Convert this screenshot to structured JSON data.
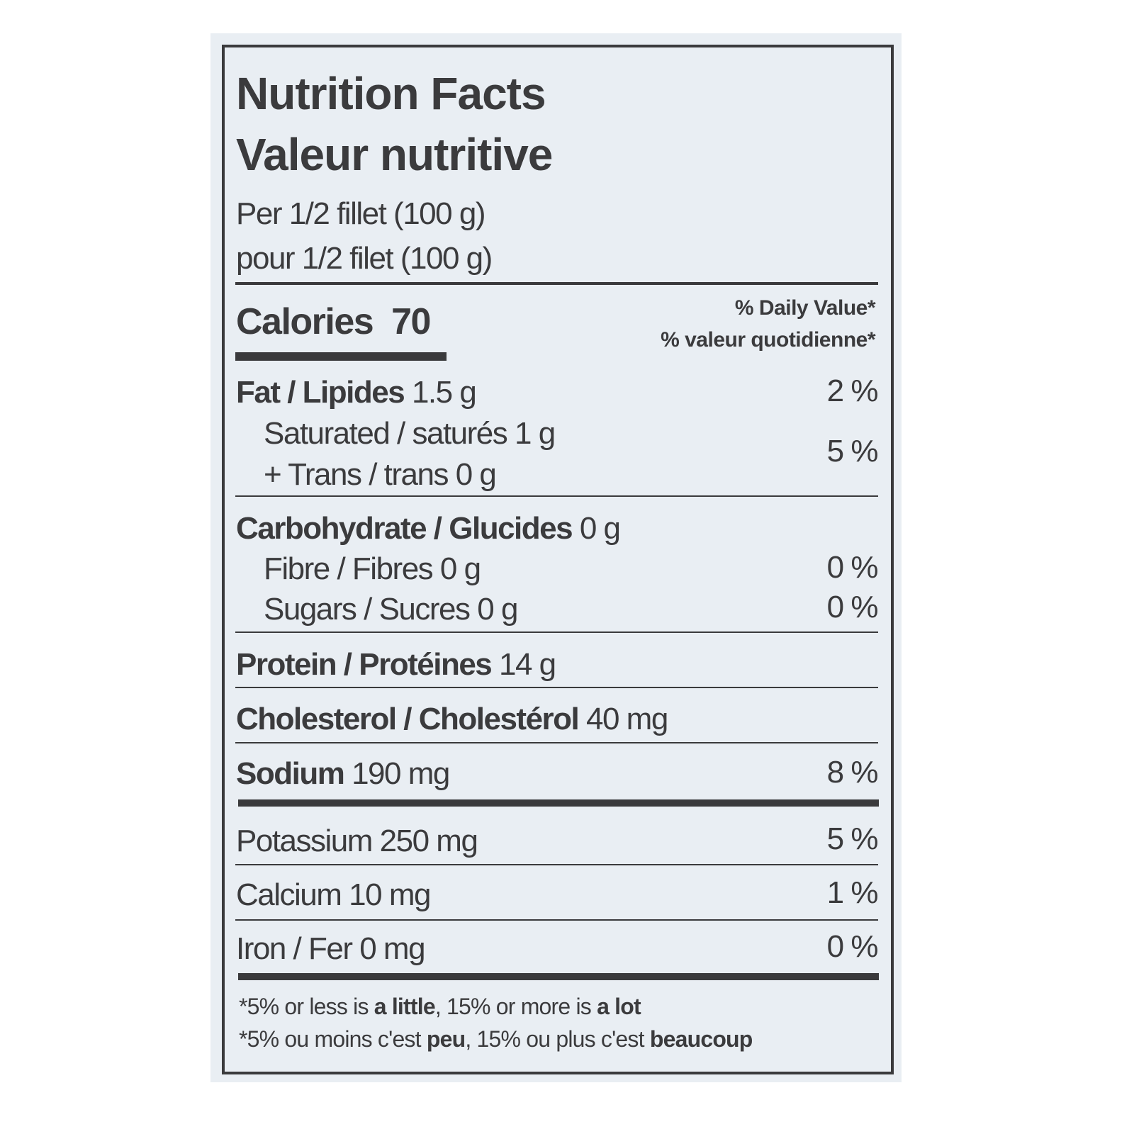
{
  "label": {
    "title_en": "Nutrition Facts",
    "title_fr": "Valeur nutritive",
    "serving_en": "Per 1/2 fillet (100 g)",
    "serving_fr": "pour 1/2 filet (100 g)",
    "calories_label": "Calories",
    "calories_value": "70",
    "dv_header_en": "% Daily Value*",
    "dv_header_fr": "% valeur quotidienne*",
    "nutrients": [
      {
        "name": "Fat / Lipides",
        "amount": "1.5 g",
        "dv": "2 %"
      },
      {
        "name": "Saturated / saturés",
        "amount": "1 g",
        "dv": "5 %"
      },
      {
        "name": "+ Trans / trans",
        "amount": "0 g"
      },
      {
        "name": "Carbohydrate / Glucides",
        "amount": "0 g"
      },
      {
        "name": "Fibre / Fibres",
        "amount": "0 g",
        "dv": "0 %"
      },
      {
        "name": "Sugars / Sucres",
        "amount": "0 g",
        "dv": "0 %"
      },
      {
        "name": "Protein / Protéines",
        "amount": "14 g"
      },
      {
        "name": "Cholesterol / Cholestérol",
        "amount": "40 mg"
      },
      {
        "name": "Sodium",
        "amount": "190 mg",
        "dv": "8 %"
      },
      {
        "name": "Potassium",
        "amount": "250 mg",
        "dv": "5 %"
      },
      {
        "name": "Calcium",
        "amount": "10 mg",
        "dv": "1 %"
      },
      {
        "name": "Iron / Fer",
        "amount": "0 mg",
        "dv": "0 %"
      }
    ],
    "footnote_en": {
      "prefix": "*5% or less is ",
      "bold1": "a little",
      "mid": ", 15% or more is ",
      "bold2": "a lot"
    },
    "footnote_fr": {
      "prefix": "*5% ou moins c'est ",
      "bold1": "peu",
      "mid": ", 15% ou plus c'est ",
      "bold2": "beaucoup"
    }
  }
}
